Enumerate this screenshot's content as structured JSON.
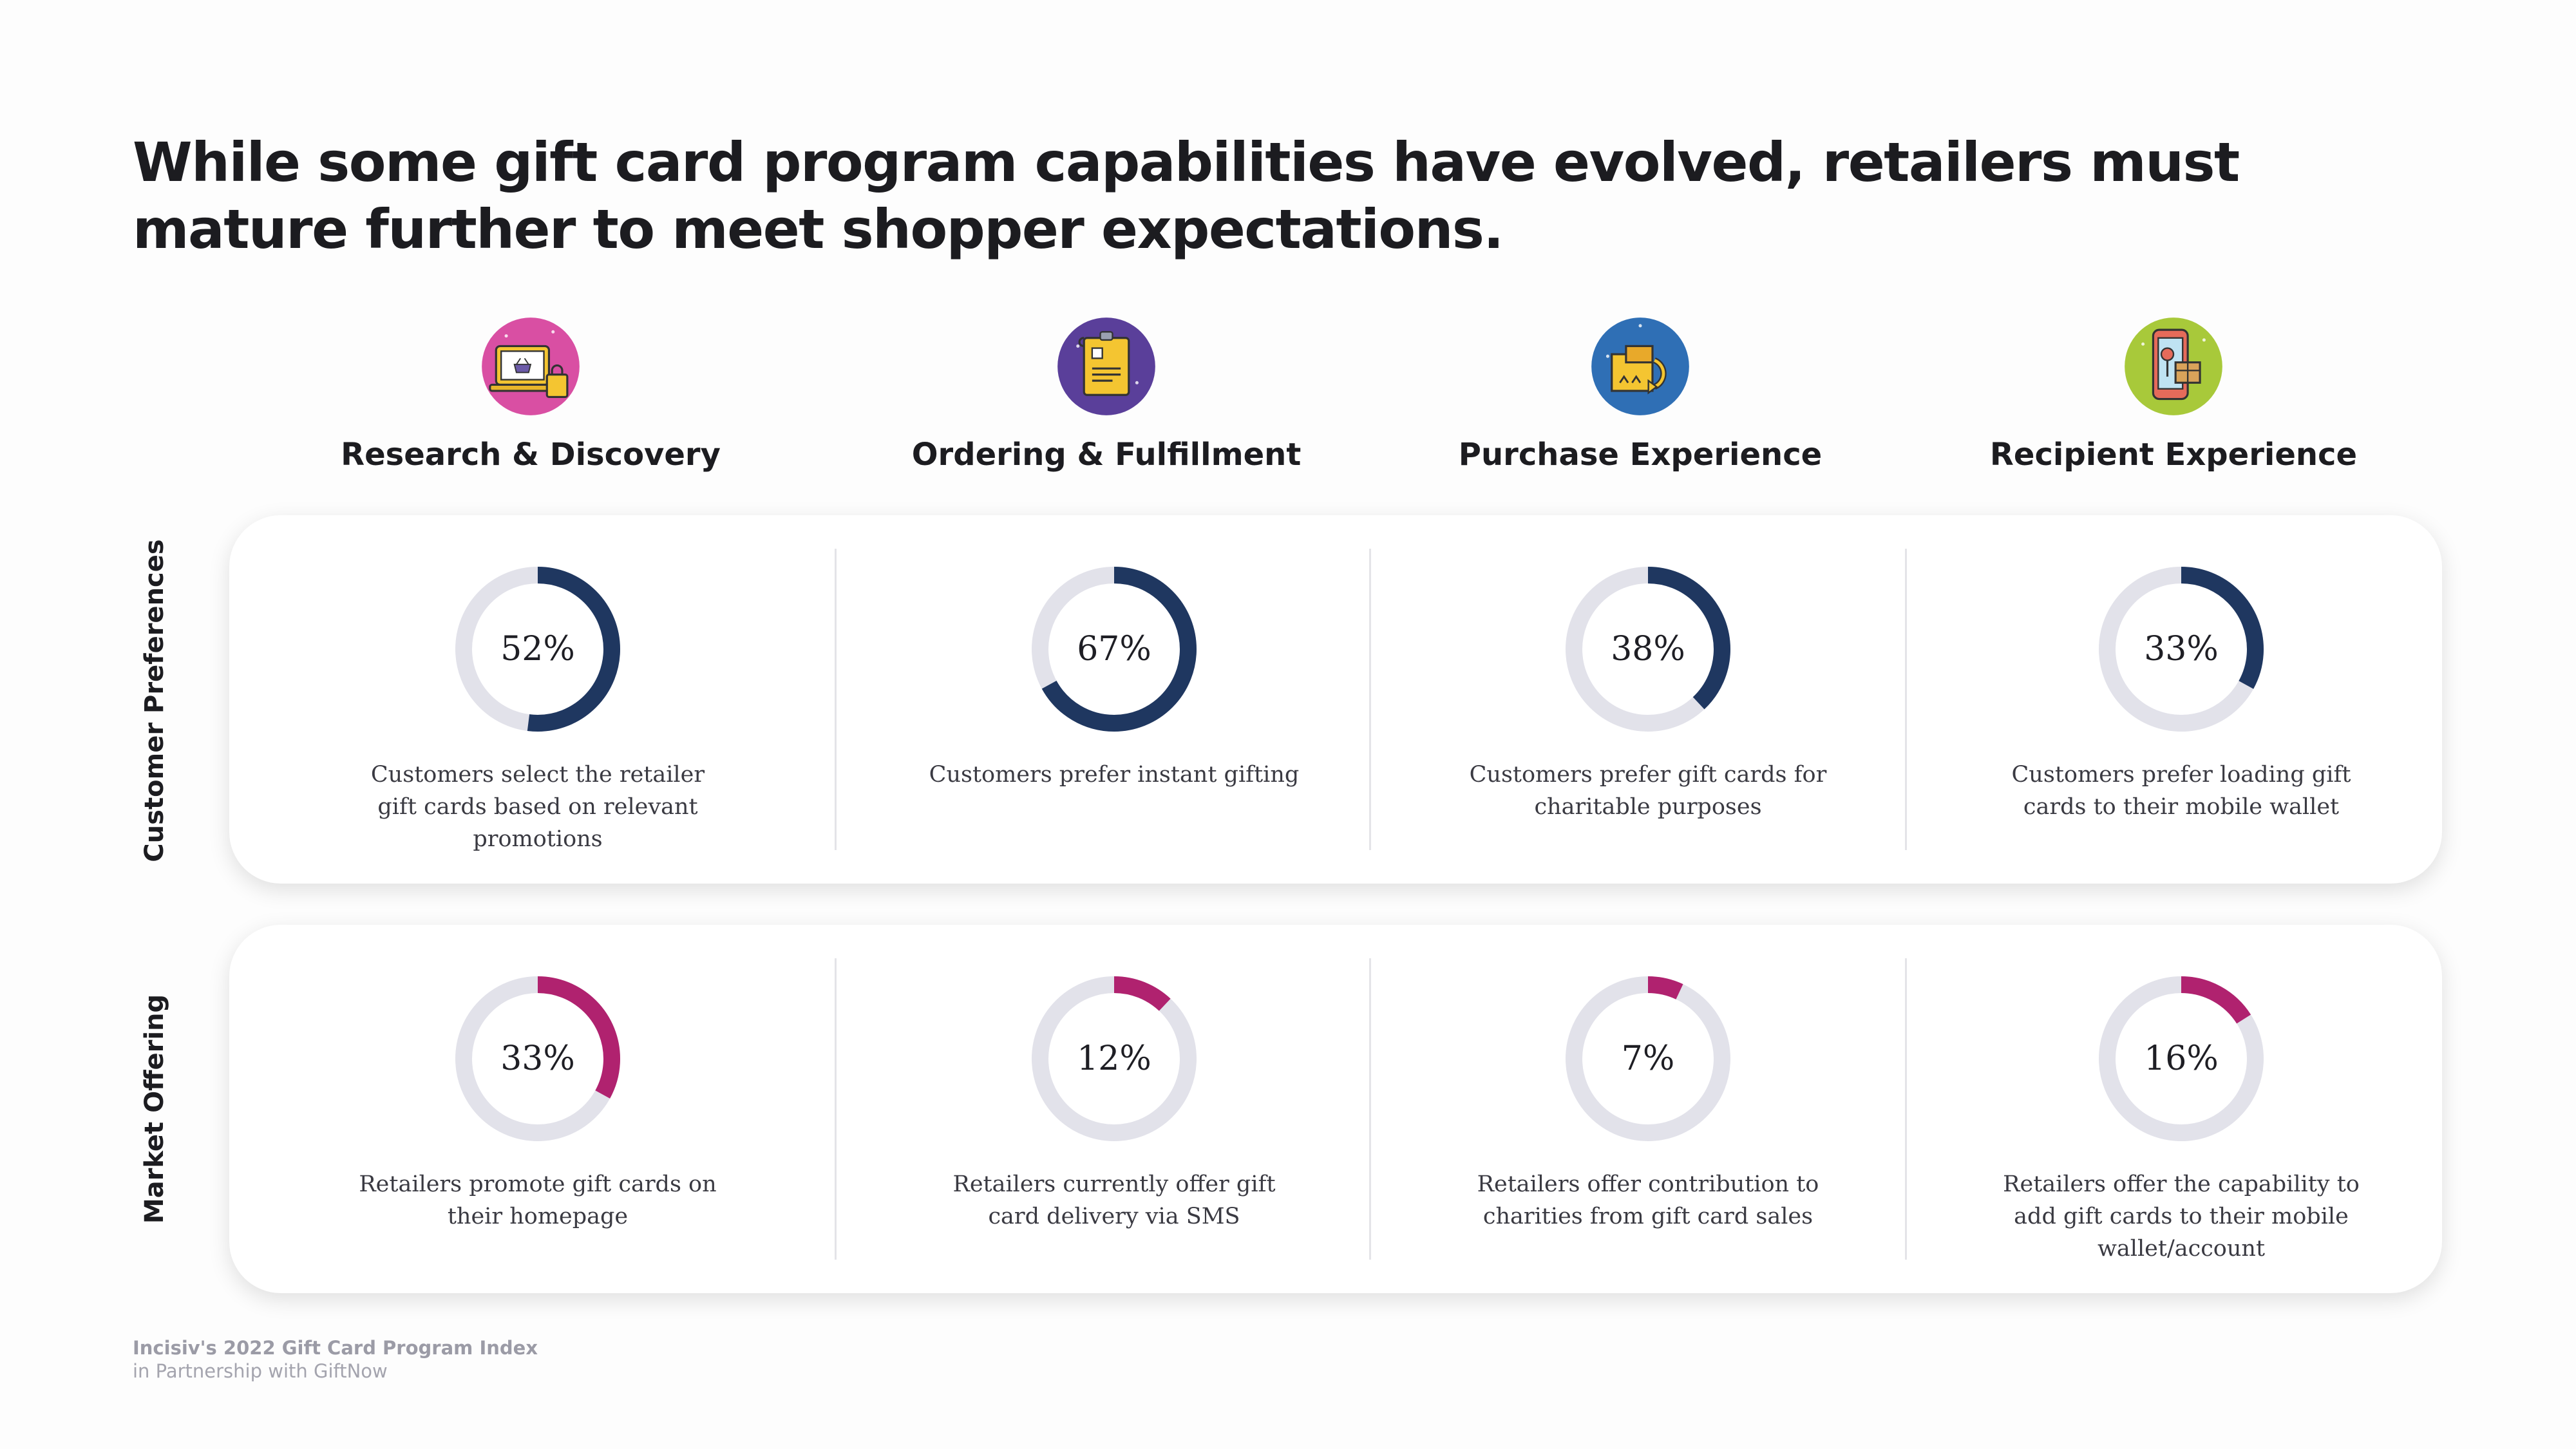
{
  "title": "While some gift card program capabilities have evolved, retailers must mature further to meet shopper expectations.",
  "columns": [
    {
      "label": "Research & Discovery",
      "icon": "laptop-shopping-icon",
      "icon_color": "#d94fa3"
    },
    {
      "label": "Ordering & Fulfillment",
      "icon": "order-document-icon",
      "icon_color": "#5a3f9a"
    },
    {
      "label": "Purchase Experience",
      "icon": "package-exchange-icon",
      "icon_color": "#2f6fb5"
    },
    {
      "label": "Recipient Experience",
      "icon": "mobile-gift-icon",
      "icon_color": "#a8c93a"
    }
  ],
  "rows": [
    {
      "label": "Customer Preferences",
      "color": "#1f3760"
    },
    {
      "label": "Market Offering",
      "color": "#b0226f"
    }
  ],
  "track_color": "#e2e2ea",
  "chart_data": [
    {
      "type": "pie",
      "row": "Customer Preferences",
      "categories": [
        "Research & Discovery",
        "Ordering & Fulfillment",
        "Purchase Experience",
        "Recipient Experience"
      ],
      "values": [
        52,
        67,
        38,
        33
      ],
      "labels": [
        "52%",
        "67%",
        "38%",
        "33%"
      ],
      "captions": [
        "Customers select the retailer gift cards based on relevant promotions",
        "Customers prefer instant gifting",
        "Customers prefer gift cards for charitable purposes",
        "Customers prefer loading gift cards to their mobile wallet"
      ]
    },
    {
      "type": "pie",
      "row": "Market Offering",
      "categories": [
        "Research & Discovery",
        "Ordering & Fulfillment",
        "Purchase Experience",
        "Recipient Experience"
      ],
      "values": [
        33,
        12,
        7,
        16
      ],
      "labels": [
        "33%",
        "12%",
        "7%",
        "16%"
      ],
      "captions": [
        "Retailers promote gift cards on their homepage",
        "Retailers currently offer gift card delivery via SMS",
        "Retailers offer contribution to charities from gift card sales",
        "Retailers offer the capability to add gift cards to their mobile wallet/account"
      ]
    }
  ],
  "footer": {
    "line1": "Incisiv's 2022 Gift Card Program Index",
    "line2": "in Partnership with GiftNow"
  }
}
